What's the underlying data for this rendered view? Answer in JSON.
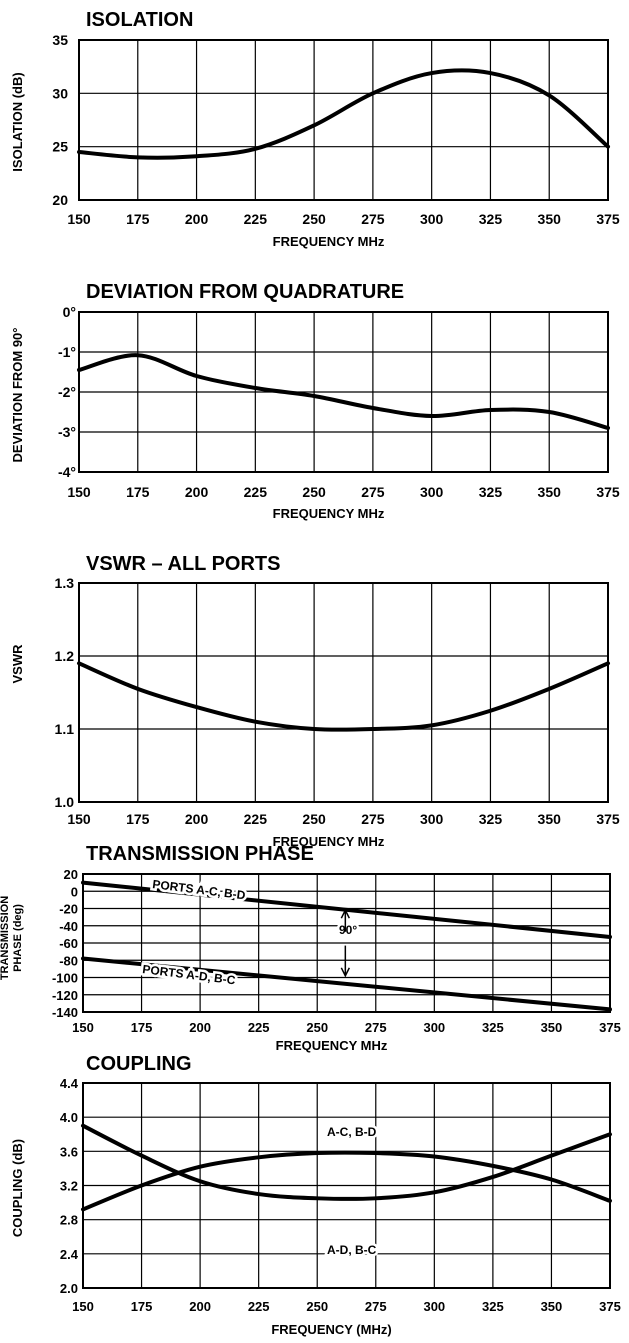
{
  "chart_data": [
    {
      "type": "line",
      "title": "ISOLATION",
      "xlabel": "FREQUENCY MHz",
      "ylabel": "ISOLATION (dB)",
      "xlim": [
        150,
        375
      ],
      "ylim": [
        20,
        35
      ],
      "x_ticks": [
        "150",
        "175",
        "200",
        "225",
        "250",
        "275",
        "300",
        "325",
        "350",
        "375"
      ],
      "y_ticks": [
        "20",
        "25",
        "30",
        "35"
      ],
      "grid": true,
      "series": [
        {
          "x": [
            150,
            175,
            200,
            225,
            250,
            275,
            300,
            325,
            350,
            375
          ],
          "values": [
            24.5,
            24.0,
            24.1,
            24.8,
            27.0,
            30.0,
            31.9,
            31.9,
            29.8,
            25.0
          ]
        }
      ]
    },
    {
      "type": "line",
      "title": "DEVIATION FROM QUADRATURE",
      "xlabel": "FREQUENCY MHz",
      "ylabel": "DEVIATION FROM 90°",
      "xlim": [
        150,
        375
      ],
      "ylim": [
        -4,
        0
      ],
      "x_ticks": [
        "150",
        "175",
        "200",
        "225",
        "250",
        "275",
        "300",
        "325",
        "350",
        "375"
      ],
      "y_ticks": [
        "0°",
        "-1°",
        "-2°",
        "-3°",
        "-4°"
      ],
      "grid": true,
      "series": [
        {
          "x": [
            150,
            175,
            200,
            225,
            250,
            275,
            300,
            325,
            350,
            375
          ],
          "values": [
            -1.45,
            -1.08,
            -1.6,
            -1.9,
            -2.1,
            -2.4,
            -2.6,
            -2.45,
            -2.5,
            -2.9
          ]
        }
      ]
    },
    {
      "type": "line",
      "title": "VSWR – ALL PORTS",
      "xlabel": "FREQUENCY MHz",
      "ylabel": "VSWR",
      "xlim": [
        150,
        375
      ],
      "ylim": [
        1.0,
        1.3
      ],
      "x_ticks": [
        "150",
        "175",
        "200",
        "225",
        "250",
        "275",
        "300",
        "325",
        "350",
        "375"
      ],
      "y_ticks": [
        "1.0",
        "1.1",
        "1.2",
        "1.3"
      ],
      "grid": true,
      "series": [
        {
          "x": [
            150,
            175,
            200,
            225,
            250,
            275,
            300,
            325,
            350,
            375
          ],
          "values": [
            1.19,
            1.155,
            1.13,
            1.11,
            1.1,
            1.1,
            1.105,
            1.125,
            1.155,
            1.19
          ]
        }
      ]
    },
    {
      "type": "line",
      "title": "TRANSMISSION PHASE",
      "xlabel": "FREQUENCY MHz",
      "ylabel": "TRANSMISSION PHASE (deg)",
      "xlim": [
        150,
        375
      ],
      "ylim": [
        -140,
        20
      ],
      "x_ticks": [
        "150",
        "175",
        "200",
        "225",
        "250",
        "275",
        "300",
        "325",
        "350",
        "375"
      ],
      "y_ticks": [
        "20",
        "0",
        "-20",
        "-40",
        "-60",
        "-80",
        "-100",
        "-120",
        "-140"
      ],
      "grid": true,
      "annotations": [
        "PORTS A-C, B-D",
        "90°",
        "PORTS A-D, B-C"
      ],
      "series": [
        {
          "name": "PORTS A-C, B-D",
          "x": [
            150,
            375
          ],
          "values": [
            10,
            -53
          ]
        },
        {
          "name": "PORTS A-D, B-C",
          "x": [
            150,
            375
          ],
          "values": [
            -78,
            -137
          ]
        }
      ]
    },
    {
      "type": "line",
      "title": "COUPLING",
      "xlabel": "FREQUENCY (MHz)",
      "ylabel": "COUPLING (dB)",
      "xlim": [
        150,
        375
      ],
      "ylim": [
        2.0,
        4.4
      ],
      "x_ticks": [
        "150",
        "175",
        "200",
        "225",
        "250",
        "275",
        "300",
        "325",
        "350",
        "375"
      ],
      "y_ticks": [
        "2.0",
        "2.4",
        "2.8",
        "3.2",
        "3.6",
        "4.0",
        "4.4"
      ],
      "grid": true,
      "annotations": [
        "A-C, B-D",
        "A-D, B-C"
      ],
      "series": [
        {
          "name": "A-C, B-D",
          "x": [
            150,
            175,
            200,
            225,
            250,
            275,
            300,
            325,
            350,
            375
          ],
          "values": [
            2.92,
            3.2,
            3.42,
            3.53,
            3.58,
            3.58,
            3.54,
            3.43,
            3.27,
            3.02
          ]
        },
        {
          "name": "A-D, B-C",
          "x": [
            150,
            175,
            200,
            225,
            250,
            275,
            300,
            325,
            350,
            375
          ],
          "values": [
            3.9,
            3.55,
            3.25,
            3.1,
            3.05,
            3.05,
            3.12,
            3.3,
            3.55,
            3.8
          ]
        }
      ]
    }
  ]
}
